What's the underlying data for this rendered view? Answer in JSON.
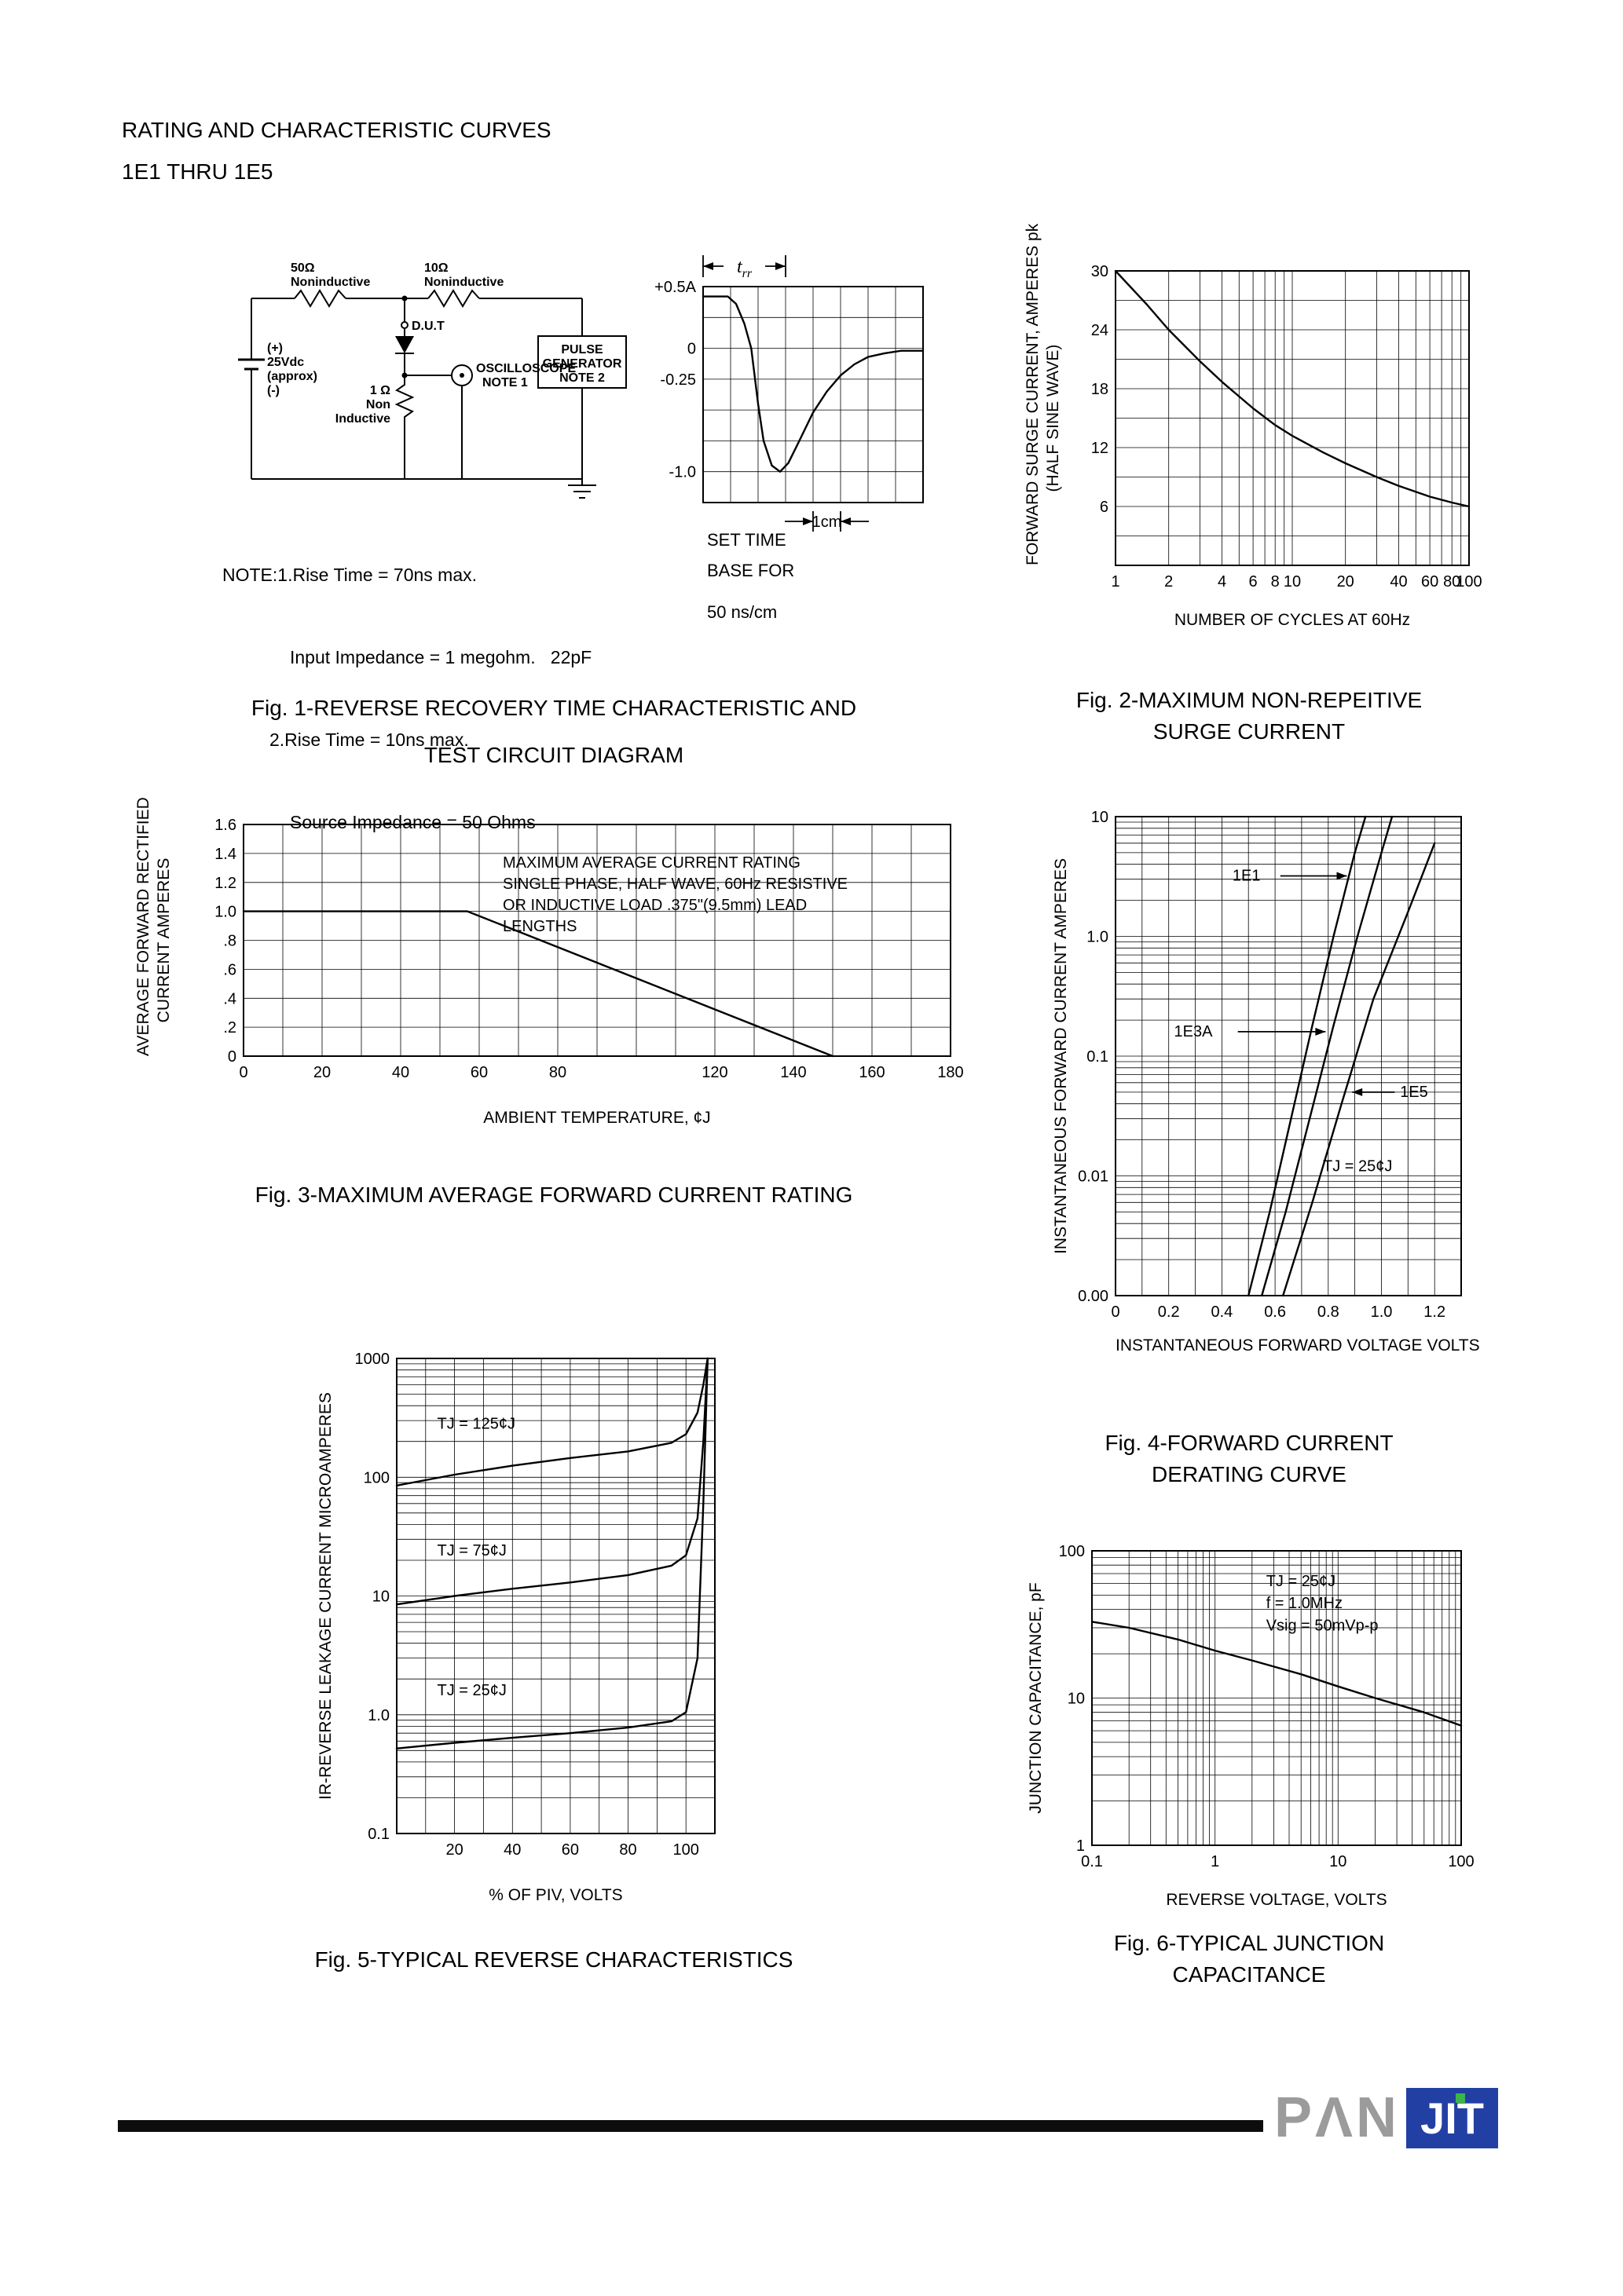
{
  "page": {
    "title": "RATING AND CHARACTERISTIC CURVES",
    "subtitle": "1E1 THRU 1E5"
  },
  "fig1": {
    "caption": [
      "Fig. 1-REVERSE RECOVERY TIME CHARACTERISTIC AND",
      "TEST CIRCUIT DIAGRAM"
    ],
    "notes": [
      "NOTE:1.Rise Time = 70ns max.",
      "Input Impedance = 1 megohm.   22pF",
      "2.Rise Time = 10ns max.",
      "Source Impedance = 50 Ohms"
    ],
    "set_time": [
      "SET TIME",
      "BASE FOR"
    ],
    "sweep": "50 ns/cm",
    "circuit": {
      "r1": [
        "50Ω",
        "Noninductive"
      ],
      "r2": [
        "10Ω",
        "Noninductive"
      ],
      "supply": [
        "(+)",
        "25Vdc",
        "(approx)",
        "(-)"
      ],
      "dut": "D.U.T",
      "r3": [
        "1 Ω",
        "Non",
        "Inductive"
      ],
      "scope": [
        "OSCILLOSCOPE",
        "NOTE 1"
      ],
      "pulse": [
        "PULSE",
        "GENERATOR",
        "NOTE 2"
      ]
    }
  },
  "fig2": {
    "caption": [
      "Fig. 2-MAXIMUM NON-REPEITIVE",
      "SURGE CURRENT"
    ]
  },
  "fig3": {
    "caption": [
      "Fig. 3-MAXIMUM AVERAGE FORWARD CURRENT RATING"
    ]
  },
  "fig4": {
    "caption": [
      "Fig. 4-FORWARD CURRENT",
      "DERATING CURVE"
    ]
  },
  "fig5": {
    "caption": [
      "Fig. 5-TYPICAL REVERSE CHARACTERISTICS"
    ]
  },
  "fig6": {
    "caption": [
      "Fig. 6-TYPICAL JUNCTION",
      "CAPACITANCE"
    ]
  },
  "logo": {
    "pan": "PΛN",
    "jit": "JIT",
    "blue": "#2240a4",
    "gray": "#9b9b9b",
    "green": "#3db54a"
  },
  "chart_data": [
    {
      "id": "wf-chart",
      "name": "reverse-recovery-waveform",
      "type": "line",
      "xscale": "linear",
      "xmin": 0,
      "xmax": 8,
      "xstep": 1,
      "yscale": "linear",
      "ymin": -1.25,
      "ymax": 0.5,
      "ystep": 0.25,
      "xticks": [],
      "yticks": [
        {
          "v": 0.5,
          "label": "+0.5A"
        },
        {
          "v": 0,
          "label": "0"
        },
        {
          "v": -0.25,
          "label": "-0.25"
        },
        {
          "v": -1,
          "label": "-1.0"
        }
      ],
      "series": [
        {
          "name": "recovery-current",
          "points": [
            [
              0,
              0.42
            ],
            [
              0.9,
              0.42
            ],
            [
              1.2,
              0.36
            ],
            [
              1.5,
              0.2
            ],
            [
              1.75,
              0
            ],
            [
              2,
              -0.45
            ],
            [
              2.2,
              -0.75
            ],
            [
              2.5,
              -0.95
            ],
            [
              2.8,
              -1.0
            ],
            [
              3.1,
              -0.93
            ],
            [
              3.5,
              -0.75
            ],
            [
              4,
              -0.52
            ],
            [
              4.5,
              -0.35
            ],
            [
              5,
              -0.22
            ],
            [
              5.5,
              -0.13
            ],
            [
              6,
              -0.07
            ],
            [
              6.6,
              -0.04
            ],
            [
              7.2,
              -0.02
            ],
            [
              8,
              -0.02
            ]
          ]
        }
      ],
      "span": {
        "x1": 0,
        "x2": 3.0,
        "label_main": "t",
        "label_sub": "rr"
      },
      "cm_mark": {
        "x1": 4,
        "x2": 5,
        "label": "1cm"
      }
    },
    {
      "id": "fig2-chart",
      "name": "surge-current",
      "type": "line",
      "xscale": "log",
      "xmin": 1,
      "xmax": 100,
      "yscale": "linear",
      "ymin": 0,
      "ymax": 30,
      "ystep": 3,
      "xticks": [
        {
          "v": 1
        },
        {
          "v": 2
        },
        {
          "v": 4
        },
        {
          "v": 6
        },
        {
          "v": 8
        },
        {
          "v": 10
        },
        {
          "v": 20
        },
        {
          "v": 40
        },
        {
          "v": 60
        },
        {
          "v": 80
        },
        {
          "v": 100
        }
      ],
      "yticks": [
        {
          "v": 30
        },
        {
          "v": 24
        },
        {
          "v": 18
        },
        {
          "v": 12
        },
        {
          "v": 6
        }
      ],
      "xlabel": "NUMBER OF CYCLES AT 60Hz",
      "ylabel": [
        "FORWARD SURGE CURRENT, AMPERES pk",
        "(HALF SINE WAVE)"
      ],
      "series": [
        {
          "name": "surge",
          "points": [
            [
              1,
              30
            ],
            [
              1.5,
              26.6
            ],
            [
              2,
              24
            ],
            [
              3,
              20.8
            ],
            [
              4,
              18.7
            ],
            [
              6,
              16
            ],
            [
              8,
              14.3
            ],
            [
              10,
              13.2
            ],
            [
              15,
              11.5
            ],
            [
              20,
              10.4
            ],
            [
              30,
              9
            ],
            [
              40,
              8.1
            ],
            [
              60,
              7
            ],
            [
              80,
              6.4
            ],
            [
              100,
              6
            ]
          ]
        }
      ]
    },
    {
      "id": "fig3-chart",
      "name": "avg-forward-current-derating",
      "type": "line",
      "xscale": "linear",
      "xmin": 0,
      "xmax": 180,
      "xstep": 10,
      "yscale": "linear",
      "ymin": 0,
      "ymax": 1.6,
      "ystep": 0.2,
      "xticks": [
        {
          "v": 0
        },
        {
          "v": 20
        },
        {
          "v": 40
        },
        {
          "v": 60
        },
        {
          "v": 80
        },
        {
          "v": 120
        },
        {
          "v": 140
        },
        {
          "v": 160
        },
        {
          "v": 180
        }
      ],
      "yticks": [
        {
          "v": 1.6,
          "label": "1.6"
        },
        {
          "v": 1.4,
          "label": "1.4"
        },
        {
          "v": 1.2,
          "label": "1.2"
        },
        {
          "v": 1.0,
          "label": "1.0"
        },
        {
          "v": 0.8,
          "label": ".8"
        },
        {
          "v": 0.6,
          "label": ".6"
        },
        {
          "v": 0.4,
          "label": ".4"
        },
        {
          "v": 0.2,
          "label": ".2"
        },
        {
          "v": 0,
          "label": "0"
        }
      ],
      "xlabel": "AMBIENT TEMPERATURE, ¢J",
      "ylabel": [
        "AVERAGE FORWARD RECTIFIED",
        "CURRENT AMPERES"
      ],
      "series": [
        {
          "name": "derating-line",
          "points": [
            [
              0,
              1.0
            ],
            [
              57,
              1.0
            ],
            [
              150,
              0
            ]
          ]
        }
      ],
      "anno": [
        "MAXIMUM AVERAGE CURRENT RATING",
        "SINGLE PHASE, HALF WAVE, 60Hz RESISTIVE",
        "OR INDUCTIVE LOAD .375\"(9.5mm) LEAD",
        "LENGTHS"
      ]
    },
    {
      "id": "fig4-chart",
      "name": "forward-current-vs-voltage",
      "type": "line",
      "xscale": "linear",
      "xmin": 0,
      "xmax": 1.3,
      "xstep": 0.1,
      "yscale": "log",
      "ymin": 0.001,
      "ymax": 10,
      "xticks": [
        {
          "v": 0,
          "label": "0"
        },
        {
          "v": 0.2,
          "label": "0.2"
        },
        {
          "v": 0.4,
          "label": "0.4"
        },
        {
          "v": 0.6,
          "label": "0.6"
        },
        {
          "v": 0.8,
          "label": "0.8"
        },
        {
          "v": 1.0,
          "label": "1.0"
        },
        {
          "v": 1.2,
          "label": "1.2"
        }
      ],
      "yticks": [
        {
          "v": 10,
          "label": "10"
        },
        {
          "v": 1,
          "label": "1.0"
        },
        {
          "v": 0.1,
          "label": "0.1"
        },
        {
          "v": 0.01,
          "label": "0.01"
        },
        {
          "v": 0.001,
          "label": "0.00"
        }
      ],
      "xlabel": "INSTANTANEOUS FORWARD VOLTAGE VOLTS",
      "ylabel": [
        "INSTANTANEOUS FORWARD CURRENT AMPERES"
      ],
      "series": [
        {
          "name": "1E1",
          "points": [
            [
              0.5,
              0.001
            ],
            [
              0.58,
              0.005
            ],
            [
              0.66,
              0.03
            ],
            [
              0.74,
              0.18
            ],
            [
              0.82,
              1.0
            ],
            [
              0.9,
              5
            ],
            [
              0.94,
              10
            ]
          ]
        },
        {
          "name": "1E3A",
          "points": [
            [
              0.55,
              0.001
            ],
            [
              0.64,
              0.005
            ],
            [
              0.73,
              0.03
            ],
            [
              0.82,
              0.18
            ],
            [
              0.91,
              1.0
            ],
            [
              1.0,
              5
            ],
            [
              1.04,
              10
            ]
          ]
        },
        {
          "name": "1E5",
          "points": [
            [
              0.63,
              0.001
            ],
            [
              0.74,
              0.006
            ],
            [
              0.85,
              0.04
            ],
            [
              0.97,
              0.3
            ],
            [
              1.1,
              1.6
            ],
            [
              1.2,
              6
            ]
          ]
        }
      ],
      "labels": [
        {
          "x": 0.44,
          "y": 3.2,
          "t": "1E1"
        },
        {
          "x": 0.22,
          "y": 0.16,
          "t": "1E3A"
        },
        {
          "x": 1.07,
          "y": 0.05,
          "t": "1E5"
        },
        {
          "x": 0.78,
          "y": 0.012,
          "t": "TJ = 25¢J"
        }
      ],
      "arrows": [
        {
          "x1": 0.62,
          "y1": 3.2,
          "x2": 0.87,
          "y2": 3.2
        },
        {
          "x1": 0.46,
          "y1": 0.16,
          "x2": 0.79,
          "y2": 0.16
        },
        {
          "x1": 1.05,
          "y1": 0.05,
          "x2": 0.89,
          "y2": 0.05
        }
      ]
    },
    {
      "id": "fig5-chart",
      "name": "reverse-leakage",
      "type": "line",
      "xscale": "linear",
      "xmin": 0,
      "xmax": 110,
      "xstep": 10,
      "yscale": "log",
      "ymin": 0.1,
      "ymax": 1000,
      "xticks": [
        {
          "v": 20
        },
        {
          "v": 40
        },
        {
          "v": 60
        },
        {
          "v": 80
        },
        {
          "v": 100
        }
      ],
      "yticks": [
        {
          "v": 1000,
          "label": "1000"
        },
        {
          "v": 100,
          "label": "100"
        },
        {
          "v": 10,
          "label": "10"
        },
        {
          "v": 1,
          "label": "1.0"
        },
        {
          "v": 0.1,
          "label": "0.1"
        }
      ],
      "xlabel": "% OF PIV, VOLTS",
      "ylabel": [
        "IR-REVERSE LEAKAGE CURRENT MICROAMPERES"
      ],
      "series": [
        {
          "name": "TJ=125C",
          "points": [
            [
              0,
              85
            ],
            [
              20,
              105
            ],
            [
              40,
              125
            ],
            [
              60,
              145
            ],
            [
              80,
              165
            ],
            [
              95,
              195
            ],
            [
              100,
              230
            ],
            [
              104,
              350
            ],
            [
              106,
              600
            ],
            [
              107.5,
              1000
            ]
          ]
        },
        {
          "name": "TJ=75C",
          "points": [
            [
              0,
              8.5
            ],
            [
              20,
              10
            ],
            [
              40,
              11.5
            ],
            [
              60,
              13
            ],
            [
              80,
              15
            ],
            [
              95,
              18
            ],
            [
              100,
              22
            ],
            [
              104,
              45
            ],
            [
              106,
              200
            ],
            [
              107.5,
              1000
            ]
          ]
        },
        {
          "name": "TJ=25C",
          "points": [
            [
              0,
              0.52
            ],
            [
              20,
              0.58
            ],
            [
              40,
              0.64
            ],
            [
              60,
              0.7
            ],
            [
              80,
              0.78
            ],
            [
              95,
              0.88
            ],
            [
              100,
              1.05
            ],
            [
              104,
              3
            ],
            [
              106,
              60
            ],
            [
              107.5,
              1000
            ]
          ]
        }
      ],
      "labels": [
        {
          "x": 14,
          "y": 280,
          "t": "TJ = 125¢J"
        },
        {
          "x": 14,
          "y": 24,
          "t": "TJ = 75¢J"
        },
        {
          "x": 14,
          "y": 1.6,
          "t": "TJ = 25¢J"
        }
      ]
    },
    {
      "id": "fig6-chart",
      "name": "junction-capacitance",
      "type": "line",
      "xscale": "log",
      "xmin": 0.1,
      "xmax": 100,
      "yscale": "log",
      "ymin": 1,
      "ymax": 100,
      "xticks": [
        {
          "v": 0.1,
          "label": "0.1"
        },
        {
          "v": 1,
          "label": "1"
        },
        {
          "v": 10,
          "label": "10"
        },
        {
          "v": 100,
          "label": "100"
        }
      ],
      "yticks": [
        {
          "v": 100,
          "label": "100"
        },
        {
          "v": 10,
          "label": "10"
        },
        {
          "v": 1,
          "label": "1"
        }
      ],
      "xlabel": "REVERSE VOLTAGE, VOLTS",
      "ylabel": [
        "JUNCTION CAPACITANCE, pF"
      ],
      "series": [
        {
          "name": "Cj",
          "points": [
            [
              0.1,
              33
            ],
            [
              0.2,
              30
            ],
            [
              0.5,
              25
            ],
            [
              1,
              21
            ],
            [
              2,
              18
            ],
            [
              5,
              14.5
            ],
            [
              10,
              12
            ],
            [
              20,
              10
            ],
            [
              50,
              8
            ],
            [
              100,
              6.5
            ]
          ]
        }
      ],
      "labels": [
        {
          "x": 2.6,
          "y": 62,
          "t": "TJ = 25¢J"
        },
        {
          "x": 2.6,
          "y": 44,
          "t": "f = 1.0MHz"
        },
        {
          "x": 2.6,
          "y": 31,
          "t": "Vsig = 50mVp-p"
        }
      ]
    }
  ]
}
